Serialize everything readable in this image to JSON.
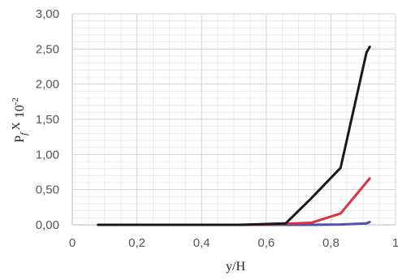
{
  "chart_data": {
    "type": "line",
    "xlabel": "y/H",
    "ylabel": {
      "base": "P",
      "sub": "f",
      "times": "X",
      "mantissa": "10",
      "exponent": "-2"
    },
    "xlim": [
      0,
      1
    ],
    "ylim": [
      0,
      3
    ],
    "x_ticks": [
      {
        "value": 0,
        "label": "0"
      },
      {
        "value": 0.2,
        "label": "0,2"
      },
      {
        "value": 0.4,
        "label": "0,4"
      },
      {
        "value": 0.6,
        "label": "0,6"
      },
      {
        "value": 0.8,
        "label": "0,8"
      },
      {
        "value": 1,
        "label": "1"
      }
    ],
    "y_ticks": [
      {
        "value": 0,
        "label": "0,00"
      },
      {
        "value": 0.5,
        "label": "0,50"
      },
      {
        "value": 1,
        "label": "1,00"
      },
      {
        "value": 1.5,
        "label": "1,50"
      },
      {
        "value": 2,
        "label": "2,00"
      },
      {
        "value": 2.5,
        "label": "2,50"
      },
      {
        "value": 3,
        "label": "3,00"
      }
    ],
    "grid": true,
    "legend": "none",
    "series": [
      {
        "color": "#1a1a1a",
        "x": [
          0.08,
          0.52,
          0.66,
          0.74,
          0.83,
          0.91,
          0.92
        ],
        "y": [
          0.0,
          0.0,
          0.02,
          0.38,
          0.81,
          2.45,
          2.53
        ]
      },
      {
        "color": "#e03040",
        "x": [
          0.08,
          0.52,
          0.6,
          0.74,
          0.83,
          0.92
        ],
        "y": [
          0.0,
          0.0,
          0.005,
          0.03,
          0.16,
          0.66
        ]
      },
      {
        "color": "#4a55b0",
        "x": [
          0.08,
          0.6,
          0.74,
          0.83,
          0.91,
          0.92
        ],
        "y": [
          0.0,
          0.0,
          0.0,
          0.005,
          0.02,
          0.04
        ]
      }
    ]
  }
}
